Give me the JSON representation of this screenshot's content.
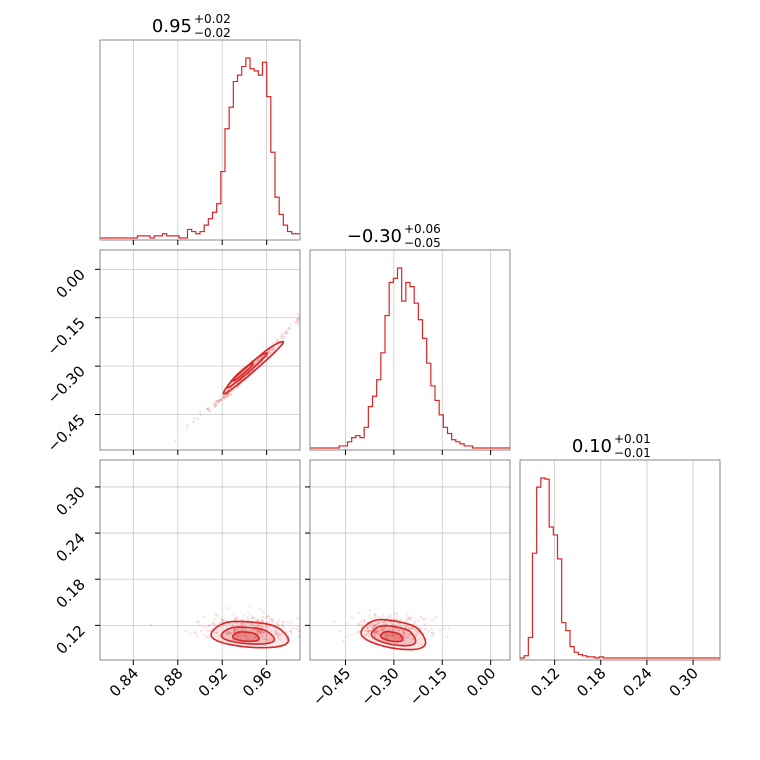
{
  "chart_data": {
    "type": "corner",
    "color": "#d62728",
    "parameters": [
      {
        "title_value": "0.95",
        "title_plus": "+0.02",
        "title_minus": "−0.02",
        "range": [
          0.81,
          0.99
        ],
        "ticks": [
          0.84,
          0.88,
          0.92,
          0.96
        ],
        "tick_labels": [
          "0.84",
          "0.88",
          "0.92",
          "0.96"
        ]
      },
      {
        "title_value": "−0.30",
        "title_plus": "+0.06",
        "title_minus": "−0.05",
        "range": [
          -0.56,
          0.06
        ],
        "ticks": [
          -0.45,
          -0.3,
          -0.15,
          0.0
        ],
        "tick_labels": [
          "−0.45",
          "−0.30",
          "−0.15",
          "0.00"
        ]
      },
      {
        "title_value": "0.10",
        "title_plus": "+0.01",
        "title_minus": "−0.01",
        "range": [
          0.075,
          0.335
        ],
        "ticks": [
          0.12,
          0.18,
          0.24,
          0.3
        ],
        "tick_labels": [
          "0.12",
          "0.18",
          "0.24",
          "0.30"
        ]
      }
    ],
    "histograms": [
      {
        "edges": [
          0.81,
          0.99
        ],
        "counts": [
          0,
          0,
          0,
          0,
          0,
          0,
          0,
          0,
          0,
          1,
          1,
          1,
          0,
          1,
          1,
          2,
          1,
          1,
          1,
          0,
          0,
          4,
          3,
          2,
          3,
          6,
          9,
          12,
          16,
          31,
          51,
          61,
          73,
          76,
          80,
          84,
          79,
          78,
          76,
          82,
          66,
          40,
          19,
          11,
          6,
          3,
          2,
          2
        ]
      },
      {
        "edges": [
          -0.56,
          0.06
        ],
        "counts": [
          0,
          0,
          0,
          0,
          0,
          0,
          0,
          1,
          1,
          3,
          5,
          6,
          5,
          10,
          20,
          25,
          33,
          46,
          64,
          80,
          82,
          87,
          71,
          80,
          78,
          70,
          62,
          53,
          41,
          30,
          23,
          16,
          10,
          7,
          4,
          3,
          2,
          1,
          1,
          0,
          0,
          0,
          0,
          0,
          0,
          0,
          0,
          0
        ]
      },
      {
        "edges": [
          0.075,
          0.335
        ],
        "counts": [
          0,
          2,
          18,
          92,
          150,
          158,
          157,
          115,
          108,
          87,
          31,
          24,
          10,
          5,
          3,
          2,
          1,
          1,
          0,
          1,
          0,
          0,
          0,
          0,
          0,
          0,
          0,
          0,
          0,
          0,
          0,
          0,
          0,
          0,
          0,
          0,
          0,
          0,
          0,
          0,
          0,
          0,
          0,
          0,
          0,
          0,
          0,
          0
        ]
      }
    ],
    "correlations": [
      {
        "pair": [
          0,
          1
        ],
        "relation": "y = -0.30 + 3.5*(x-0.95) + 8*(x-0.95)^2",
        "contour_center": [
          0.944,
          -0.32
        ]
      },
      {
        "pair": [
          0,
          2
        ],
        "contour_center": [
          0.945,
          0.108
        ]
      },
      {
        "pair": [
          1,
          2
        ],
        "contour_center": [
          -0.3,
          0.108
        ]
      }
    ],
    "grid": true
  }
}
